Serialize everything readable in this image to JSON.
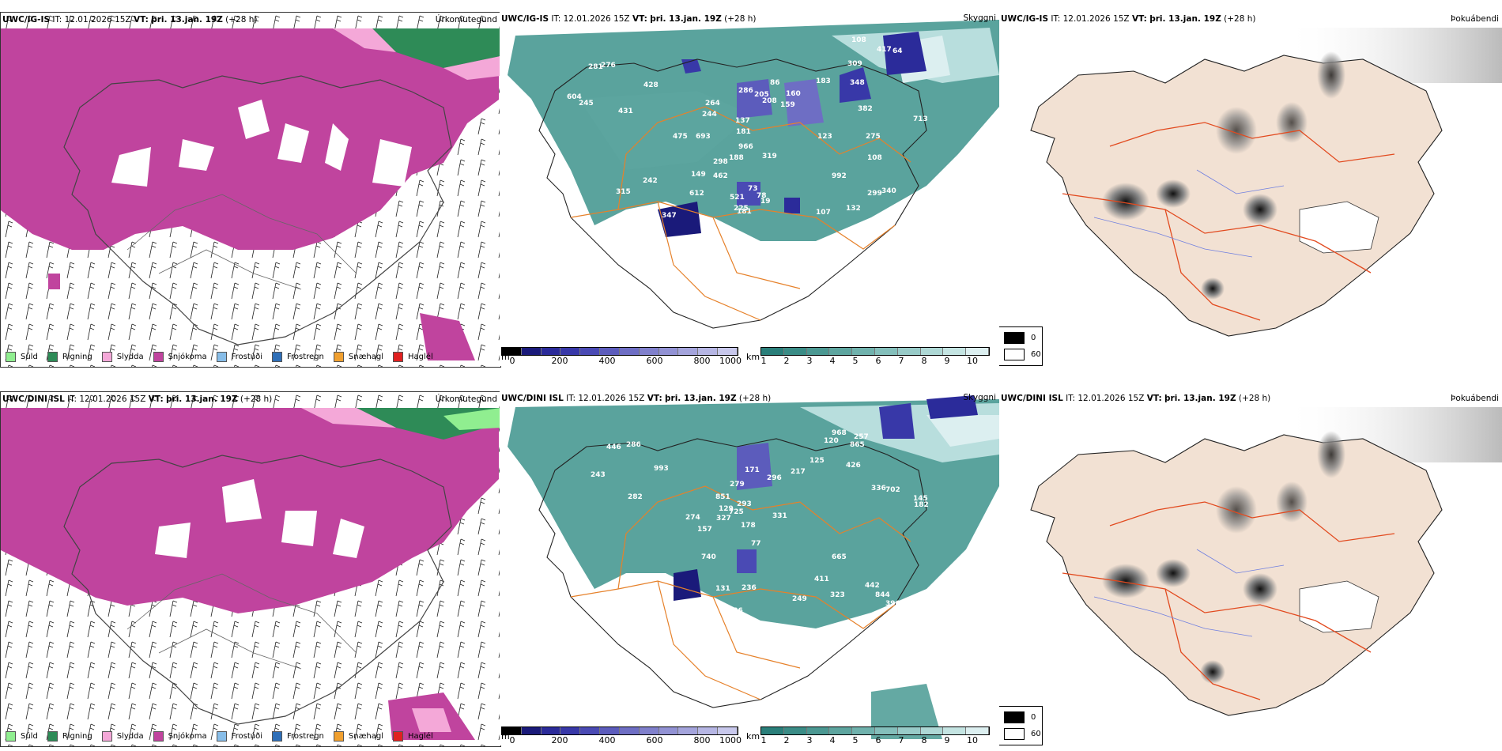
{
  "rows": [
    {
      "model": "UWC/IG-IS",
      "it_label": "IT:",
      "it_value": "12.01.2026 15Z",
      "vt_label": "VT:",
      "vt_value": "þri. 13.jan. 19Z",
      "lead": "(+28 h)",
      "labels_cloud": [
        "604",
        "281",
        "276",
        "428",
        "245",
        "431",
        "264",
        "244",
        "286",
        "205",
        "208",
        "86",
        "160",
        "183",
        "108",
        "309",
        "417",
        "64",
        "348",
        "137",
        "181",
        "159",
        "123",
        "382",
        "275",
        "713",
        "475",
        "693",
        "298",
        "188",
        "966",
        "319",
        "108",
        "149",
        "462",
        "992",
        "340",
        "299",
        "242",
        "315",
        "612",
        "521",
        "78",
        "107",
        "132",
        "225",
        "347",
        "181",
        "73",
        "19"
      ]
    },
    {
      "model": "UWC/DINI ISL",
      "it_label": "IT:",
      "it_value": "12.01.2026 15Z",
      "vt_label": "VT:",
      "vt_value": "þri. 13.jan. 19Z",
      "lead": "(+28 h)",
      "labels_cloud": [
        "446",
        "286",
        "243",
        "993",
        "282",
        "279",
        "171",
        "296",
        "217",
        "125",
        "120",
        "968",
        "865",
        "426",
        "257",
        "851",
        "129",
        "725",
        "293",
        "336",
        "702",
        "274",
        "327",
        "157",
        "178",
        "331",
        "77",
        "145",
        "182",
        "740",
        "665",
        "131",
        "236",
        "411",
        "442",
        "249",
        "323",
        "396",
        "844",
        "97",
        "236",
        "8"
      ]
    }
  ],
  "panels": {
    "precip_title": "Úrkomutegund",
    "cloud_title": "Skyggni",
    "fog_title": "Þokuábendi"
  },
  "precip_legend": [
    {
      "label": "Súld",
      "color": "#90ee90"
    },
    {
      "label": "Rigning",
      "color": "#2e8b57"
    },
    {
      "label": "Slydda",
      "color": "#f4a8d8"
    },
    {
      "label": "Snjókoma",
      "color": "#c0449e"
    },
    {
      "label": "Frostúði",
      "color": "#87bde8"
    },
    {
      "label": "Frostregn",
      "color": "#2f6fb8"
    },
    {
      "label": "Snæhagl",
      "color": "#f0a030"
    },
    {
      "label": "Haglél",
      "color": "#e02020"
    }
  ],
  "ceiling_bar": {
    "unit": "m",
    "ticks": [
      "0",
      "200",
      "400",
      "600",
      "800",
      "1000"
    ],
    "colors": [
      "#000000",
      "#1a1a7a",
      "#2b2b9a",
      "#3838a8",
      "#4a4ab4",
      "#5c5cbc",
      "#6e6ec4",
      "#8080cc",
      "#9292d4",
      "#a4a4dc",
      "#b6b6e4",
      "#c8c8ec"
    ]
  },
  "visibility_bar": {
    "unit": "km",
    "ticks": [
      "1",
      "2",
      "3",
      "4",
      "5",
      "6",
      "7",
      "8",
      "9",
      "10"
    ],
    "colors": [
      "#2a7f7a",
      "#3a8c86",
      "#4b9892",
      "#5da59f",
      "#70b2ad",
      "#84bfbb",
      "#98cbc8",
      "#aed8d5",
      "#c4e4e2",
      "#dceff0"
    ]
  },
  "fog_legend": {
    "high": "0",
    "low": "60"
  }
}
